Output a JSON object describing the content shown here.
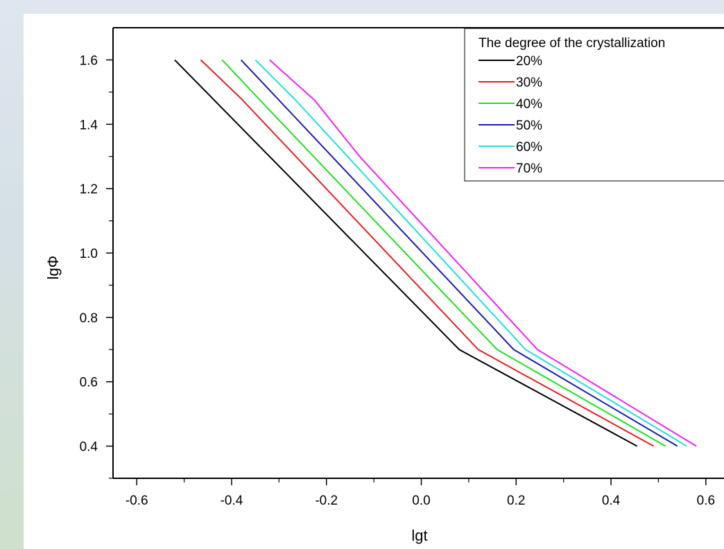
{
  "chart_data": {
    "type": "line",
    "xlabel": "lgt",
    "ylabel": "lgΦ",
    "xlim": [
      -0.65,
      0.65
    ],
    "ylim": [
      0.3,
      1.7
    ],
    "x_ticks": [
      "-0.6",
      "-0.4",
      "-0.2",
      "0.0",
      "0.2",
      "0.4",
      "0.6"
    ],
    "x_tick_values": [
      -0.6,
      -0.4,
      -0.2,
      0.0,
      0.2,
      0.4,
      0.6
    ],
    "y_ticks": [
      "0.4",
      "0.6",
      "0.8",
      "1.0",
      "1.2",
      "1.4",
      "1.6"
    ],
    "y_tick_values": [
      0.4,
      0.6,
      0.8,
      1.0,
      1.2,
      1.4,
      1.6
    ],
    "legend_title": "The degree of the crystallization",
    "legend_position": "top-right",
    "grid": false,
    "series": [
      {
        "name": "20%",
        "color": "#000000",
        "x": [
          -0.52,
          0.08,
          0.455
        ],
        "y": [
          1.6,
          0.7,
          0.4
        ]
      },
      {
        "name": "30%",
        "color": "#e02020",
        "x": [
          -0.465,
          -0.38,
          0.12,
          0.49
        ],
        "y": [
          1.6,
          1.48,
          0.7,
          0.4
        ]
      },
      {
        "name": "40%",
        "color": "#22dd22",
        "x": [
          -0.42,
          -0.34,
          0.16,
          0.515
        ],
        "y": [
          1.6,
          1.475,
          0.7,
          0.4
        ]
      },
      {
        "name": "50%",
        "color": "#1a1aaa",
        "x": [
          -0.38,
          -0.3,
          0.195,
          0.54
        ],
        "y": [
          1.6,
          1.475,
          0.7,
          0.4
        ]
      },
      {
        "name": "60%",
        "color": "#22dddd",
        "x": [
          -0.35,
          -0.265,
          0.22,
          0.56
        ],
        "y": [
          1.6,
          1.475,
          0.7,
          0.4
        ]
      },
      {
        "name": "70%",
        "color": "#ee22ee",
        "x": [
          -0.32,
          -0.225,
          -0.13,
          0.245,
          0.58
        ],
        "y": [
          1.6,
          1.475,
          1.3,
          0.7,
          0.4
        ]
      }
    ]
  }
}
